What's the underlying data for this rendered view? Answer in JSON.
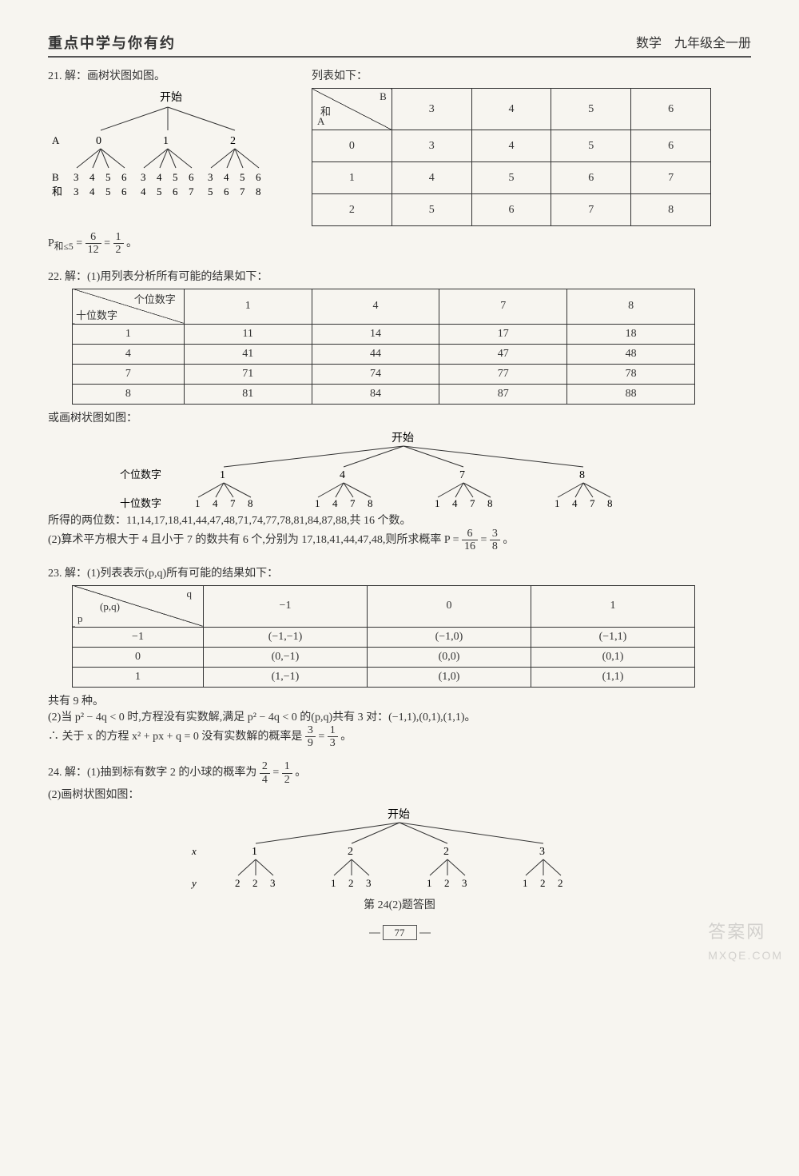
{
  "header": {
    "left": "重点中学与你有约",
    "right": "数学　九年级全一册"
  },
  "q21": {
    "intro": "21. 解：画树状图如图。",
    "listLabel": "列表如下：",
    "tree": {
      "root": "开始",
      "rowALabel": "A",
      "rowA": [
        "0",
        "1",
        "2"
      ],
      "rowBLabel": "B",
      "rowB": [
        "3",
        "4",
        "5",
        "6",
        "3",
        "4",
        "5",
        "6",
        "3",
        "4",
        "5",
        "6"
      ],
      "rowSumLabel": "和",
      "rowSum": [
        "3",
        "4",
        "5",
        "6",
        "4",
        "5",
        "6",
        "7",
        "5",
        "6",
        "7",
        "8"
      ]
    },
    "table": {
      "colHead": [
        "3",
        "4",
        "5",
        "6"
      ],
      "rowHead": [
        "0",
        "1",
        "2"
      ],
      "hLabel": "B",
      "sumLabel": "和",
      "vLabel": "A",
      "cells": [
        [
          "3",
          "4",
          "5",
          "6"
        ],
        [
          "4",
          "5",
          "6",
          "7"
        ],
        [
          "5",
          "6",
          "7",
          "8"
        ]
      ]
    },
    "concl": {
      "prefix": "P",
      "sub": "和≤5",
      "eq": " = ",
      "f1n": "6",
      "f1d": "12",
      "eq2": " = ",
      "f2n": "1",
      "f2d": "2",
      "dot": "。"
    }
  },
  "q22": {
    "intro": "22. 解：(1)用列表分析所有可能的结果如下：",
    "table": {
      "diagTop": "个位数字",
      "diagBot": "十位数字",
      "cols": [
        "1",
        "4",
        "7",
        "8"
      ],
      "rows": [
        "1",
        "4",
        "7",
        "8"
      ],
      "cells": [
        [
          "11",
          "14",
          "17",
          "18"
        ],
        [
          "41",
          "44",
          "47",
          "48"
        ],
        [
          "71",
          "74",
          "77",
          "78"
        ],
        [
          "81",
          "84",
          "87",
          "88"
        ]
      ]
    },
    "altLabel": "或画树状图如图：",
    "tree": {
      "root": "开始",
      "l1Label": "个位数字",
      "l1": [
        "1",
        "4",
        "7",
        "8"
      ],
      "l2Label": "十位数字",
      "l2": [
        "1",
        "4",
        "7",
        "8"
      ]
    },
    "line1": "所得的两位数：11,14,17,18,41,44,47,48,71,74,77,78,81,84,87,88,共 16 个数。",
    "line2a": "(2)算术平方根大于 4 且小于 7 的数共有 6 个,分别为 17,18,41,44,47,48,则所求概率 P = ",
    "f1n": "6",
    "f1d": "16",
    "eq": " = ",
    "f2n": "3",
    "f2d": "8",
    "dot": "。"
  },
  "q23": {
    "intro": "23. 解：(1)列表表示(p,q)所有可能的结果如下：",
    "table": {
      "diagTop": "q",
      "diagMid": "(p,q)",
      "diagBot": "p",
      "cols": [
        "−1",
        "0",
        "1"
      ],
      "rows": [
        "−1",
        "0",
        "1"
      ],
      "cells": [
        [
          "(−1,−1)",
          "(−1,0)",
          "(−1,1)"
        ],
        [
          "(0,−1)",
          "(0,0)",
          "(0,1)"
        ],
        [
          "(1,−1)",
          "(1,0)",
          "(1,1)"
        ]
      ]
    },
    "total": "共有 9 种。",
    "line2a": "(2)当 p² − 4q < 0 时,方程没有实数解,满足 p² − 4q < 0 的(p,q)共有 3 对：(−1,1),(0,1),(1,1)。",
    "line2b": "∴ 关于 x 的方程 x² + px + q = 0 没有实数解的概率是 ",
    "f1n": "3",
    "f1d": "9",
    "eq": " = ",
    "f2n": "1",
    "f2d": "3",
    "dot": "。"
  },
  "q24": {
    "l1a": "24. 解：(1)抽到标有数字 2 的小球的概率为 ",
    "f1n": "2",
    "f1d": "4",
    "eq": " = ",
    "f2n": "1",
    "f2d": "2",
    "dot": "。",
    "l2": "(2)画树状图如图：",
    "tree": {
      "root": "开始",
      "xLabel": "x",
      "x": [
        "1",
        "2",
        "2",
        "3"
      ],
      "yLabel": "y",
      "y": [
        [
          "2",
          "2",
          "3"
        ],
        [
          "1",
          "2",
          "3"
        ],
        [
          "1",
          "2",
          "3"
        ],
        [
          "1",
          "2",
          "2"
        ]
      ]
    },
    "caption": "第 24(2)题答图"
  },
  "pageNum": "77",
  "wm1": "答案网",
  "wm2": "MXQE.COM"
}
